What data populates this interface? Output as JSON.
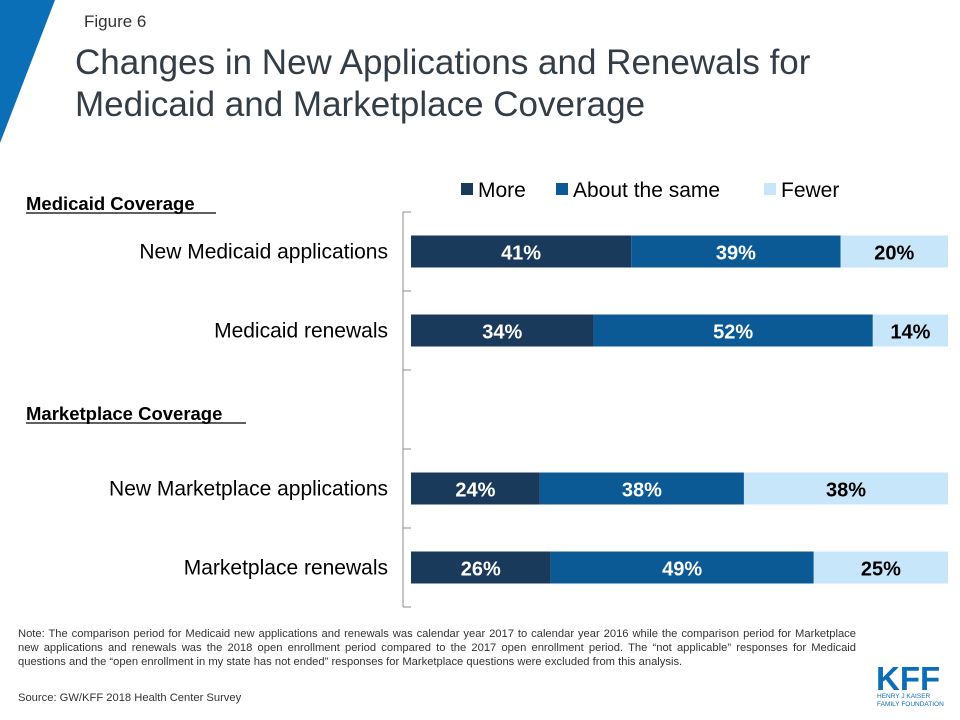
{
  "header": {
    "figure_label": "Figure 6",
    "title": "Changes in New Applications and Renewals for Medicaid and Marketplace Coverage"
  },
  "chart_data": {
    "type": "bar",
    "orientation": "horizontal",
    "stacked": true,
    "percent_stacked": true,
    "legend_position": "top",
    "xlim": [
      0,
      100
    ],
    "grid": false,
    "groups": [
      {
        "heading": "Medicaid Coverage",
        "categories": [
          "New Medicaid applications",
          "Medicaid renewals"
        ]
      },
      {
        "heading": "Marketplace Coverage",
        "categories": [
          "New Marketplace applications",
          "Marketplace renewals"
        ]
      }
    ],
    "categories": [
      "New Medicaid applications",
      "Medicaid renewals",
      "New Marketplace applications",
      "Marketplace renewals"
    ],
    "series": [
      {
        "name": "More",
        "color": "#1a3a5c",
        "values": [
          41,
          34,
          24,
          26
        ],
        "labels": [
          "41%",
          "34%",
          "24%",
          "26%"
        ]
      },
      {
        "name": "About the same",
        "color": "#0b5a95",
        "values": [
          39,
          52,
          38,
          49
        ],
        "labels": [
          "39%",
          "52%",
          "38%",
          "49%"
        ]
      },
      {
        "name": "Fewer",
        "color": "#c7e6fa",
        "values": [
          20,
          14,
          38,
          25
        ],
        "labels": [
          "20%",
          "14%",
          "38%",
          "25%"
        ]
      }
    ]
  },
  "footer": {
    "note": "Note: The comparison period for Medicaid new applications and renewals was calendar year 2017 to calendar year 2016 while the comparison period for Marketplace new applications and renewals was the 2018 open enrollment period compared to the 2017 open enrollment period. The “not applicable” responses for Medicaid questions and the “open enrollment in my state has not ended” responses for Marketplace questions were excluded from this analysis.",
    "source": "Source: GW/KFF 2018 Health Center Survey"
  },
  "logo": {
    "wordmark": "KFF",
    "subtitle_line1": "HENRY J KAISER",
    "subtitle_line2": "FAMILY FOUNDATION",
    "color": "#0b6fb8"
  }
}
